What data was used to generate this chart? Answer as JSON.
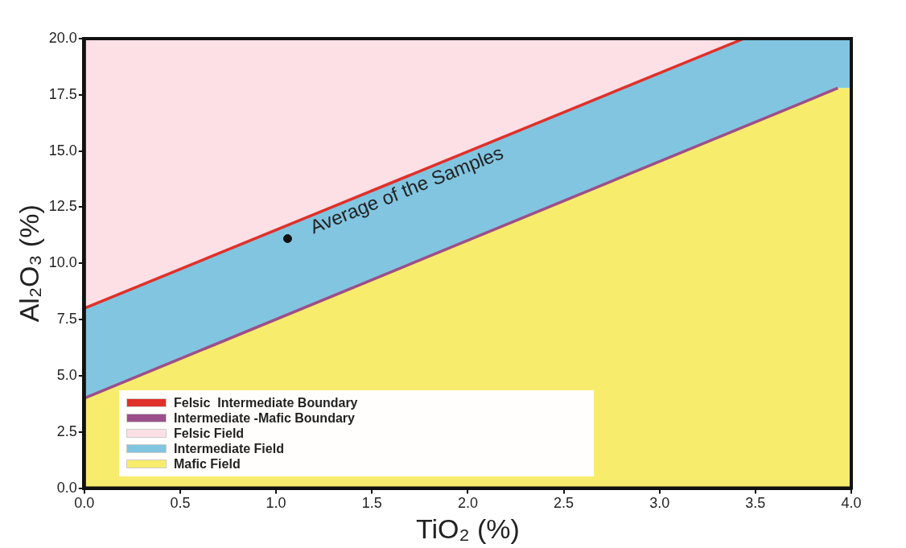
{
  "chart_data": {
    "type": "area",
    "xlabel": "TiO₂ (%)",
    "ylabel": "Al₂O₃ (%)",
    "xlim": [
      0,
      4
    ],
    "ylim": [
      0,
      20
    ],
    "stacked": true,
    "xticks": [
      {
        "value": 0,
        "label": "0.0"
      },
      {
        "value": 0.5,
        "label": "0.5"
      },
      {
        "value": 1,
        "label": "1.0"
      },
      {
        "value": 1.5,
        "label": "1.5"
      },
      {
        "value": 2,
        "label": "2.0"
      },
      {
        "value": 2.5,
        "label": "2.5"
      },
      {
        "value": 3,
        "label": "3.0"
      },
      {
        "value": 3.5,
        "label": "3.5"
      },
      {
        "value": 4,
        "label": "4.0"
      }
    ],
    "yticks": [
      {
        "value": 0,
        "label": "0.0"
      },
      {
        "value": 2.5,
        "label": "2.5"
      },
      {
        "value": 5,
        "label": "5.0"
      },
      {
        "value": 7.5,
        "label": "7.5"
      },
      {
        "value": 10,
        "label": "10.0"
      },
      {
        "value": 12.5,
        "label": "12.5"
      },
      {
        "value": 15,
        "label": "15.0"
      },
      {
        "value": 17.5,
        "label": "17.5"
      },
      {
        "value": 20,
        "label": "20.0"
      }
    ],
    "legend": "bottom left",
    "x": [
      0,
      3.44,
      3.93,
      4
    ],
    "series": [
      {
        "name": "Felsic  Intermediate Boundary",
        "type": "line",
        "color": "#e0302a",
        "x": [
          0,
          3.44
        ],
        "values": [
          8,
          20
        ]
      },
      {
        "name": "Intermediate -Mafic Boundary",
        "type": "line",
        "color": "#9b4f8a",
        "x": [
          0,
          3.93
        ],
        "values": [
          4,
          17.8
        ]
      },
      {
        "name": "Mafic Field",
        "color": "#f8ec6c",
        "values": [
          4,
          16.04,
          17.8,
          17.8
        ]
      },
      {
        "name": "Intermediate Field",
        "color": "#82c5e0",
        "values": [
          4,
          3.96,
          2.2,
          2.2
        ]
      },
      {
        "name": "Felsic Field",
        "color": "#fce0e6",
        "values": [
          12,
          0,
          0,
          0
        ]
      },
      {
        "type": "scatter",
        "color": "#111111",
        "marker": "circle",
        "x": [
          1.06
        ],
        "values": [
          11.1
        ]
      }
    ],
    "annotations": [
      {
        "text": "Average of the Samples",
        "x": 1.06,
        "y": 11.1
      }
    ]
  }
}
